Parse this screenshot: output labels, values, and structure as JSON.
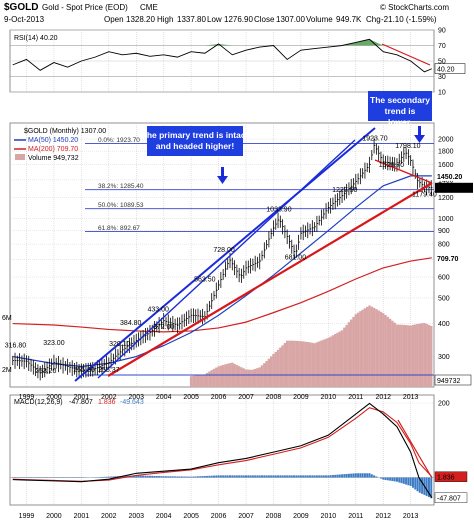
{
  "header": {
    "symbol": "$GOLD",
    "name": "Gold - Spot Price (EOD)",
    "exchange": "CME",
    "date": "9-Oct-2013",
    "watermark": "© StockCharts.com",
    "quote": {
      "open_label": "Open",
      "open": "1328.20",
      "high_label": "High",
      "high": "1337.80",
      "low_label": "Low",
      "low": "1276.90",
      "close_label": "Close",
      "close": "1307.00",
      "volume_label": "Volume",
      "volume": "949.7K",
      "chg_label": "Chg",
      "chg": "-21.10 (-1.59%)"
    }
  },
  "chart_data": [
    {
      "type": "line",
      "panel": "rsi",
      "legend": "RSI(14) 40.20",
      "current_value": "40.20",
      "ylim": [
        10,
        90
      ],
      "yticks": [
        10,
        30,
        50,
        70,
        90
      ],
      "overbought": 70,
      "oversold": 30,
      "x": [
        1998.5,
        1999,
        1999.5,
        2000,
        2000.5,
        2001,
        2001.5,
        2002,
        2002.5,
        2003,
        2003.5,
        2004,
        2004.5,
        2005,
        2005.5,
        2006,
        2006.5,
        2007,
        2007.5,
        2008,
        2008.5,
        2009,
        2009.5,
        2010,
        2010.5,
        2011,
        2011.5,
        2012,
        2012.5,
        2013,
        2013.5,
        2013.77
      ],
      "values": [
        45,
        52,
        38,
        48,
        42,
        50,
        55,
        62,
        58,
        60,
        56,
        58,
        55,
        62,
        60,
        72,
        58,
        64,
        68,
        70,
        52,
        64,
        66,
        68,
        70,
        74,
        78,
        62,
        58,
        50,
        36,
        40
      ]
    },
    {
      "type": "line",
      "panel": "price",
      "scale": "log",
      "legend": {
        "title": "$GOLD (Monthly) 1307.00",
        "ma50": "MA(50) 1450.20",
        "ma200": "MA(200) 709.70",
        "volume": "Volume 949,732"
      },
      "yticks": [
        200,
        300,
        400,
        500,
        600,
        700,
        800,
        900,
        1000,
        1200,
        1400,
        1600,
        1800,
        2000
      ],
      "ylim": [
        230,
        2300
      ],
      "price": {
        "x": [
          1998.5,
          1999.0,
          1999.5,
          2000.0,
          2000.5,
          2001.0,
          2001.5,
          2002.0,
          2002.5,
          2003.0,
          2003.5,
          2004.0,
          2004.5,
          2005.0,
          2005.5,
          2006.0,
          2006.4,
          2006.8,
          2007.0,
          2007.5,
          2008.0,
          2008.2,
          2008.8,
          2009.0,
          2009.5,
          2010.0,
          2010.5,
          2011.0,
          2011.5,
          2011.67,
          2012.0,
          2012.5,
          2012.8,
          2013.0,
          2013.25,
          2013.5,
          2013.77
        ],
        "values": [
          290,
          288,
          260,
          285,
          275,
          265,
          270,
          285,
          318,
          345,
          370,
          410,
          395,
          430,
          425,
          560,
          700,
          600,
          650,
          690,
          920,
          1000,
          730,
          880,
          930,
          1100,
          1220,
          1380,
          1600,
          1900,
          1640,
          1600,
          1790,
          1660,
          1390,
          1320,
          1307
        ]
      },
      "ma50": {
        "x": [
          1998.5,
          2000,
          2001,
          2002,
          2003,
          2004,
          2005,
          2006,
          2007,
          2008,
          2009,
          2010,
          2011,
          2012,
          2013,
          2013.77
        ],
        "values": [
          300,
          282,
          275,
          283,
          300,
          330,
          370,
          430,
          510,
          610,
          740,
          900,
          1100,
          1330,
          1450,
          1450.2
        ]
      },
      "ma200": {
        "x": [
          1998.5,
          2000,
          2001,
          2002,
          2003,
          2004,
          2005,
          2006,
          2007,
          2008,
          2009,
          2010,
          2011,
          2012,
          2013,
          2013.77
        ],
        "values": [
          400,
          395,
          388,
          380,
          375,
          372,
          375,
          385,
          405,
          440,
          480,
          530,
          590,
          650,
          690,
          709.7
        ]
      },
      "volume": {
        "x": [
          2005.0,
          2005.5,
          2006.0,
          2006.5,
          2007.0,
          2007.5,
          2008.0,
          2008.5,
          2009.0,
          2009.5,
          2010.0,
          2010.5,
          2011.0,
          2011.5,
          2012.0,
          2012.5,
          2013.0,
          2013.5
        ],
        "values": [
          0.4,
          0.5,
          0.9,
          1.2,
          1.0,
          1.1,
          1.6,
          2.0,
          1.8,
          1.6,
          1.7,
          1.9,
          2.4,
          2.7,
          2.5,
          2.2,
          2.3,
          2.6
        ],
        "ticks": [
          "6M",
          "2M"
        ],
        "current": "949732"
      },
      "price_tags": {
        "ma50": "1450.20",
        "close": "1307.00",
        "ma200": "709.70"
      },
      "annotations": [
        {
          "text": "253.20",
          "x": 1999.7,
          "y": 253.2
        },
        {
          "text": "323.00",
          "x": 2000.0,
          "y": 323
        },
        {
          "text": "255.80",
          "x": 2001.1,
          "y": 255.8
        },
        {
          "text": "255.37",
          "x": 2002.0,
          "y": 255.4
        },
        {
          "text": "320.10",
          "x": 2002.4,
          "y": 320.1
        },
        {
          "text": "384.80",
          "x": 2002.8,
          "y": 384.8
        },
        {
          "text": "433.00",
          "x": 2003.8,
          "y": 433
        },
        {
          "text": "372.00",
          "x": 2004.0,
          "y": 372
        },
        {
          "text": "563.50",
          "x": 2005.5,
          "y": 563.5
        },
        {
          "text": "728.00",
          "x": 2006.2,
          "y": 728
        },
        {
          "text": "681.00",
          "x": 2008.8,
          "y": 681
        },
        {
          "text": "1033.90",
          "x": 2008.2,
          "y": 1033.9
        },
        {
          "text": "1227.50",
          "x": 2010.6,
          "y": 1227.5
        },
        {
          "text": "1923.70",
          "x": 2011.7,
          "y": 1923.7
        },
        {
          "text": "1798.10",
          "x": 2012.9,
          "y": 1798.1
        },
        {
          "text": "1526.70",
          "x": 2012.3,
          "y": 1526.7
        },
        {
          "text": "1179.40",
          "x": 2013.5,
          "y": 1179.4
        },
        {
          "text": "316.80",
          "x": 1998.6,
          "y": 316.8
        }
      ],
      "fibonacci": [
        {
          "label": "0.0%: 1923.70",
          "value": 1923.7
        },
        {
          "label": "38.2%: 1285.40",
          "value": 1285.4
        },
        {
          "label": "50.0%: 1089.53",
          "value": 1089.53
        },
        {
          "label": "61.8%: 892.67",
          "value": 892.67
        }
      ],
      "notes": [
        {
          "text": "The primary trend is intact and headed higher!"
        },
        {
          "text": "The secondary trend is lower."
        }
      ]
    },
    {
      "type": "bar",
      "panel": "macd",
      "legend": {
        "macd": "MACD(12,26,9)",
        "macd_value": "-47.807",
        "signal_value": "1.836",
        "hist_value": "-49.643"
      },
      "x": [
        1998.5,
        1999,
        2000,
        2001,
        2002,
        2003,
        2004,
        2005,
        2006,
        2007,
        2008,
        2009,
        2010,
        2011,
        2011.5,
        2012,
        2012.5,
        2013,
        2013.3,
        2013.77
      ],
      "macd": [
        -5,
        -6,
        -8,
        -10,
        -4,
        10,
        15,
        20,
        35,
        45,
        60,
        75,
        100,
        150,
        175,
        150,
        120,
        60,
        0,
        -47.807
      ],
      "signal": [
        -4,
        -5,
        -7,
        -9,
        -6,
        5,
        12,
        18,
        30,
        40,
        55,
        70,
        95,
        140,
        165,
        155,
        130,
        80,
        35,
        1.836
      ],
      "histogram": [
        -1,
        -1,
        -1,
        -1,
        2,
        5,
        3,
        2,
        5,
        5,
        5,
        5,
        5,
        10,
        10,
        -5,
        -10,
        -20,
        -35,
        -49.643
      ],
      "tick_values": [
        "1.836",
        "-47.807"
      ]
    }
  ],
  "x_axis": {
    "labels": [
      "1999",
      "2000",
      "2001",
      "2002",
      "2003",
      "2004",
      "2005",
      "2006",
      "2007",
      "2008",
      "2009",
      "2010",
      "2011",
      "2012",
      "2013"
    ]
  },
  "colors": {
    "grid": "#c8c8c8",
    "price": "#000000",
    "ma50": "#1f3fbf",
    "ma200": "#d41f1f",
    "trend_up": "#1a2bd9",
    "trend_red": "#d81818",
    "rsi_fill": "#4f9a4f",
    "volume": "#d9a6a6",
    "note_bg": "#1e3ee0",
    "macd_hist": "#3e7cc6"
  }
}
